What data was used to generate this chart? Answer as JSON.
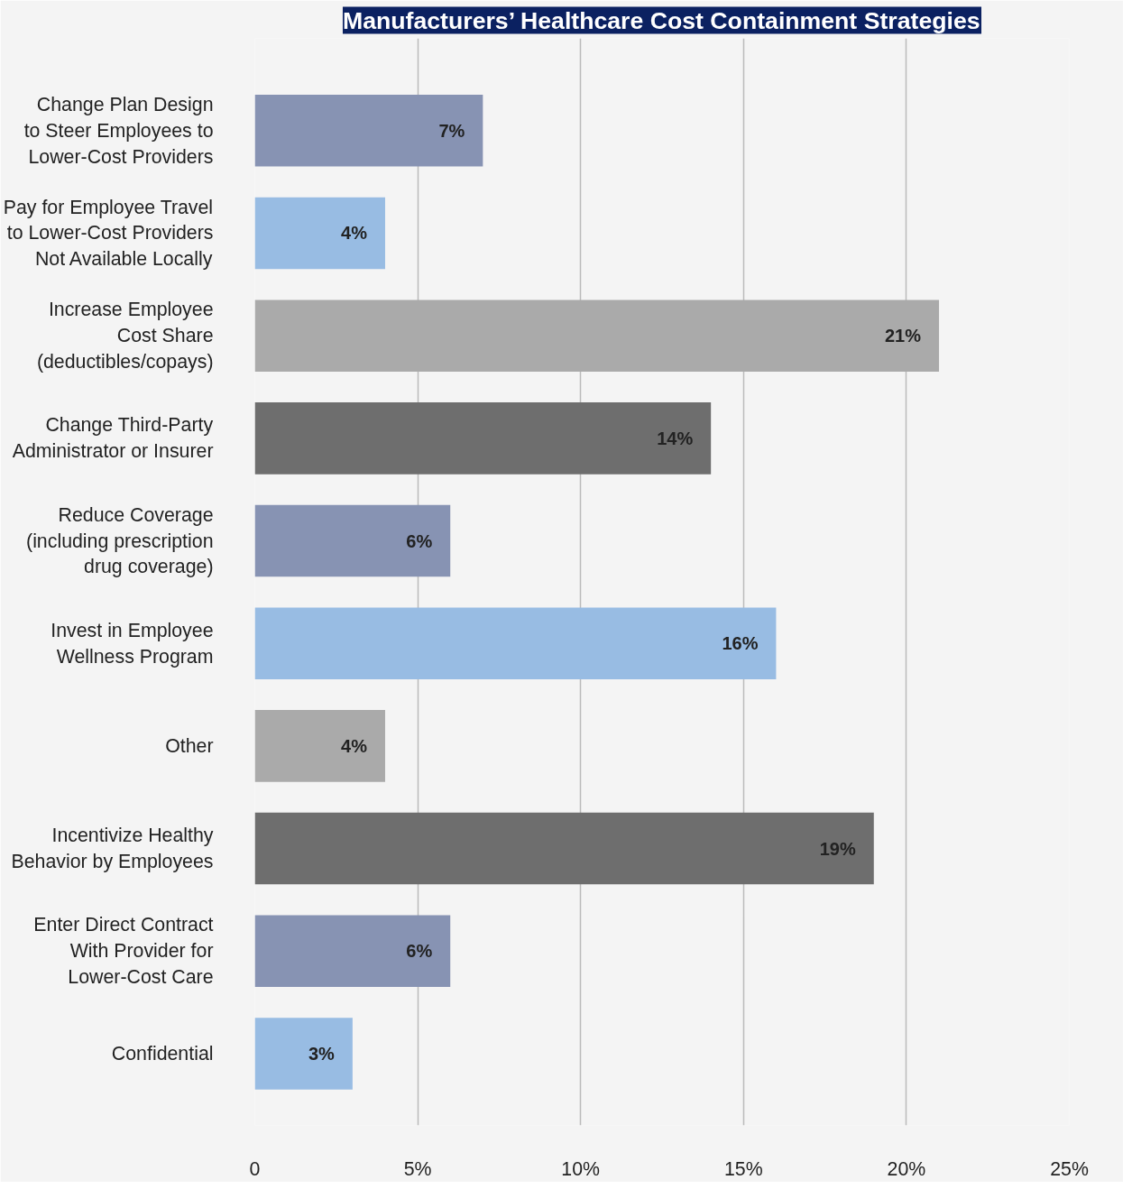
{
  "chart_data": {
    "type": "bar",
    "orientation": "horizontal",
    "title": "Manufacturers’ Healthcare Cost Containment Strategies",
    "categories": [
      "Change Plan Design\nto Steer Employees to\nLower-Cost Providers",
      "Pay for Employee Travel\nto Lower-Cost Providers\nNot Available Locally",
      "Increase Employee\nCost Share\n(deductibles/copays)",
      "Change Third-Party\nAdministrator or Insurer",
      "Reduce Coverage\n(including prescription\ndrug coverage)",
      "Invest in Employee\nWellness Program",
      "Other",
      "Incentivize Healthy\nBehavior by Employees",
      "Enter Direct Contract\nWith Provider for\nLower-Cost Care",
      "Confidential"
    ],
    "values": [
      7,
      4,
      21,
      14,
      6,
      16,
      4,
      19,
      6,
      3
    ],
    "value_labels": [
      "7%",
      "4%",
      "21%",
      "14%",
      "6%",
      "16%",
      "4%",
      "19%",
      "6%",
      "3%"
    ],
    "colors": [
      "#8793b3",
      "#98bce3",
      "#aaaaaa",
      "#6e6e6e",
      "#8793b3",
      "#98bce3",
      "#aaaaaa",
      "#6e6e6e",
      "#8793b3",
      "#98bce3"
    ],
    "xlim": [
      0,
      25
    ],
    "xticks": [
      0,
      {
        "value": 5,
        "label": "5%"
      },
      {
        "value": 10,
        "label": "10%"
      },
      {
        "value": 15,
        "label": "15%"
      },
      {
        "value": 20,
        "label": "20%"
      },
      {
        "value": 25,
        "label": "25%"
      }
    ],
    "grid": "x"
  }
}
